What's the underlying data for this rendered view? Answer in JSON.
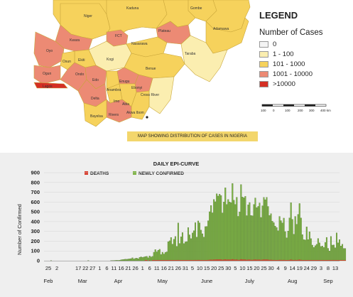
{
  "map": {
    "legend_title": "LEGEND",
    "legend_subtitle": "Number of Cases",
    "legend_items": [
      {
        "label": "0",
        "color": "#f4f4f4"
      },
      {
        "label": "1 - 100",
        "color": "#fbeeb0"
      },
      {
        "label": "101 - 1000",
        "color": "#f6d25c"
      },
      {
        "label": "1001 - 10000",
        "color": "#ec8a74"
      },
      {
        "label": ">10000",
        "color": "#d42f24"
      }
    ],
    "scale_labels": [
      "100",
      "0",
      "100",
      "200",
      "300",
      "400 km"
    ],
    "caption": "MAP SHOWING DISTRIBUTION OF CASES IN NIGERIA",
    "state_labels": [
      "Kaduna",
      "Gombe",
      "Niger",
      "Adamawa",
      "FCT",
      "Plateau",
      "Kwara",
      "Oyo",
      "Nasarawa",
      "Taraba",
      "Ekiti",
      "Osun",
      "Kogi",
      "Benue",
      "Ogun",
      "Ondo",
      "Lagos",
      "Edo",
      "Anambra",
      "Enugu",
      "Ebonyi",
      "Delta",
      "Imo",
      "Abia",
      "Cross River",
      "Bayelsa",
      "Rivers",
      "Akwa Ibom"
    ]
  },
  "chart_data": {
    "type": "bar",
    "title": "DAILY EPI-CURVE",
    "ylabel": "Number of Confirmed",
    "xlabel": "",
    "ylim": [
      0,
      900
    ],
    "y_ticks": [
      "900",
      "800",
      "700",
      "600",
      "500",
      "400",
      "300",
      "200",
      "100",
      "0"
    ],
    "x_day_ticks": [
      "25",
      "2",
      "17",
      "22",
      "27",
      "1",
      "6",
      "11",
      "16",
      "21",
      "26",
      "1",
      "6",
      "11",
      "16",
      "21",
      "26",
      "31",
      "5",
      "10",
      "15",
      "20",
      "25",
      "30",
      "5",
      "10",
      "15",
      "20",
      "25",
      "30",
      "4",
      "9",
      "14",
      "19",
      "24",
      "29",
      "3",
      "8",
      "13"
    ],
    "x_month_labels": [
      "Feb",
      "Mar",
      "Apr",
      "May",
      "June",
      "July",
      "Aug",
      "Sep"
    ],
    "legend": [
      {
        "name": "DEATHS",
        "color": "#d83a2a"
      },
      {
        "name": "NEWLY CONFIRMED",
        "color": "#7cb342"
      }
    ],
    "series": [
      {
        "name": "NEWLY CONFIRMED",
        "start_date": "2020-02-27",
        "values": [
          1,
          0,
          0,
          0,
          0,
          0,
          0,
          0,
          0,
          0,
          0,
          0,
          0,
          0,
          0,
          0,
          0,
          0,
          0,
          0,
          0,
          0,
          0,
          0,
          0,
          0,
          1,
          0,
          0,
          0,
          0,
          0,
          0,
          0,
          0,
          0,
          0,
          0,
          0,
          0,
          0,
          0,
          1,
          2,
          3,
          4,
          5,
          4,
          6,
          10,
          12,
          14,
          16,
          15,
          18,
          20,
          22,
          30,
          18,
          25,
          28,
          20,
          35,
          40,
          34,
          38,
          43,
          45,
          30,
          50,
          38,
          45,
          87,
          114,
          91,
          108,
          117,
          64,
          87,
          69,
          86,
          91,
          195,
          204,
          238,
          170,
          220,
          248,
          148,
          386,
          177,
          245,
          288,
          176,
          193,
          196,
          339,
          265,
          226,
          284,
          307,
          389,
          241,
          407,
          387,
          313,
          276,
          242,
          349,
          351,
          409,
          501,
          565,
          490,
          626,
          603,
          684,
          661,
          680,
          667,
          489,
          600,
          745,
          575,
          626,
          601,
          593,
          790,
          618,
          576,
          649,
          454,
          499,
          779,
          652,
          643,
          658,
          461,
          571,
          595,
          463,
          460,
          575,
          642,
          543,
          556,
          591,
          443,
          562,
          648,
          624,
          648,
          555,
          462,
          481,
          404,
          389,
          354,
          339,
          306,
          453,
          410,
          386,
          436,
          298,
          234,
          304,
          437,
          593,
          423,
          271,
          453,
          373,
          474,
          585,
          437,
          267,
          216,
          212,
          346,
          217,
          296,
          226,
          160,
          137,
          154,
          168,
          228,
          183,
          146,
          151,
          136,
          188,
          239,
          127,
          100,
          249,
          160,
          162,
          133,
          285,
          184,
          216,
          151,
          168,
          126,
          125
        ]
      }
    ]
  }
}
